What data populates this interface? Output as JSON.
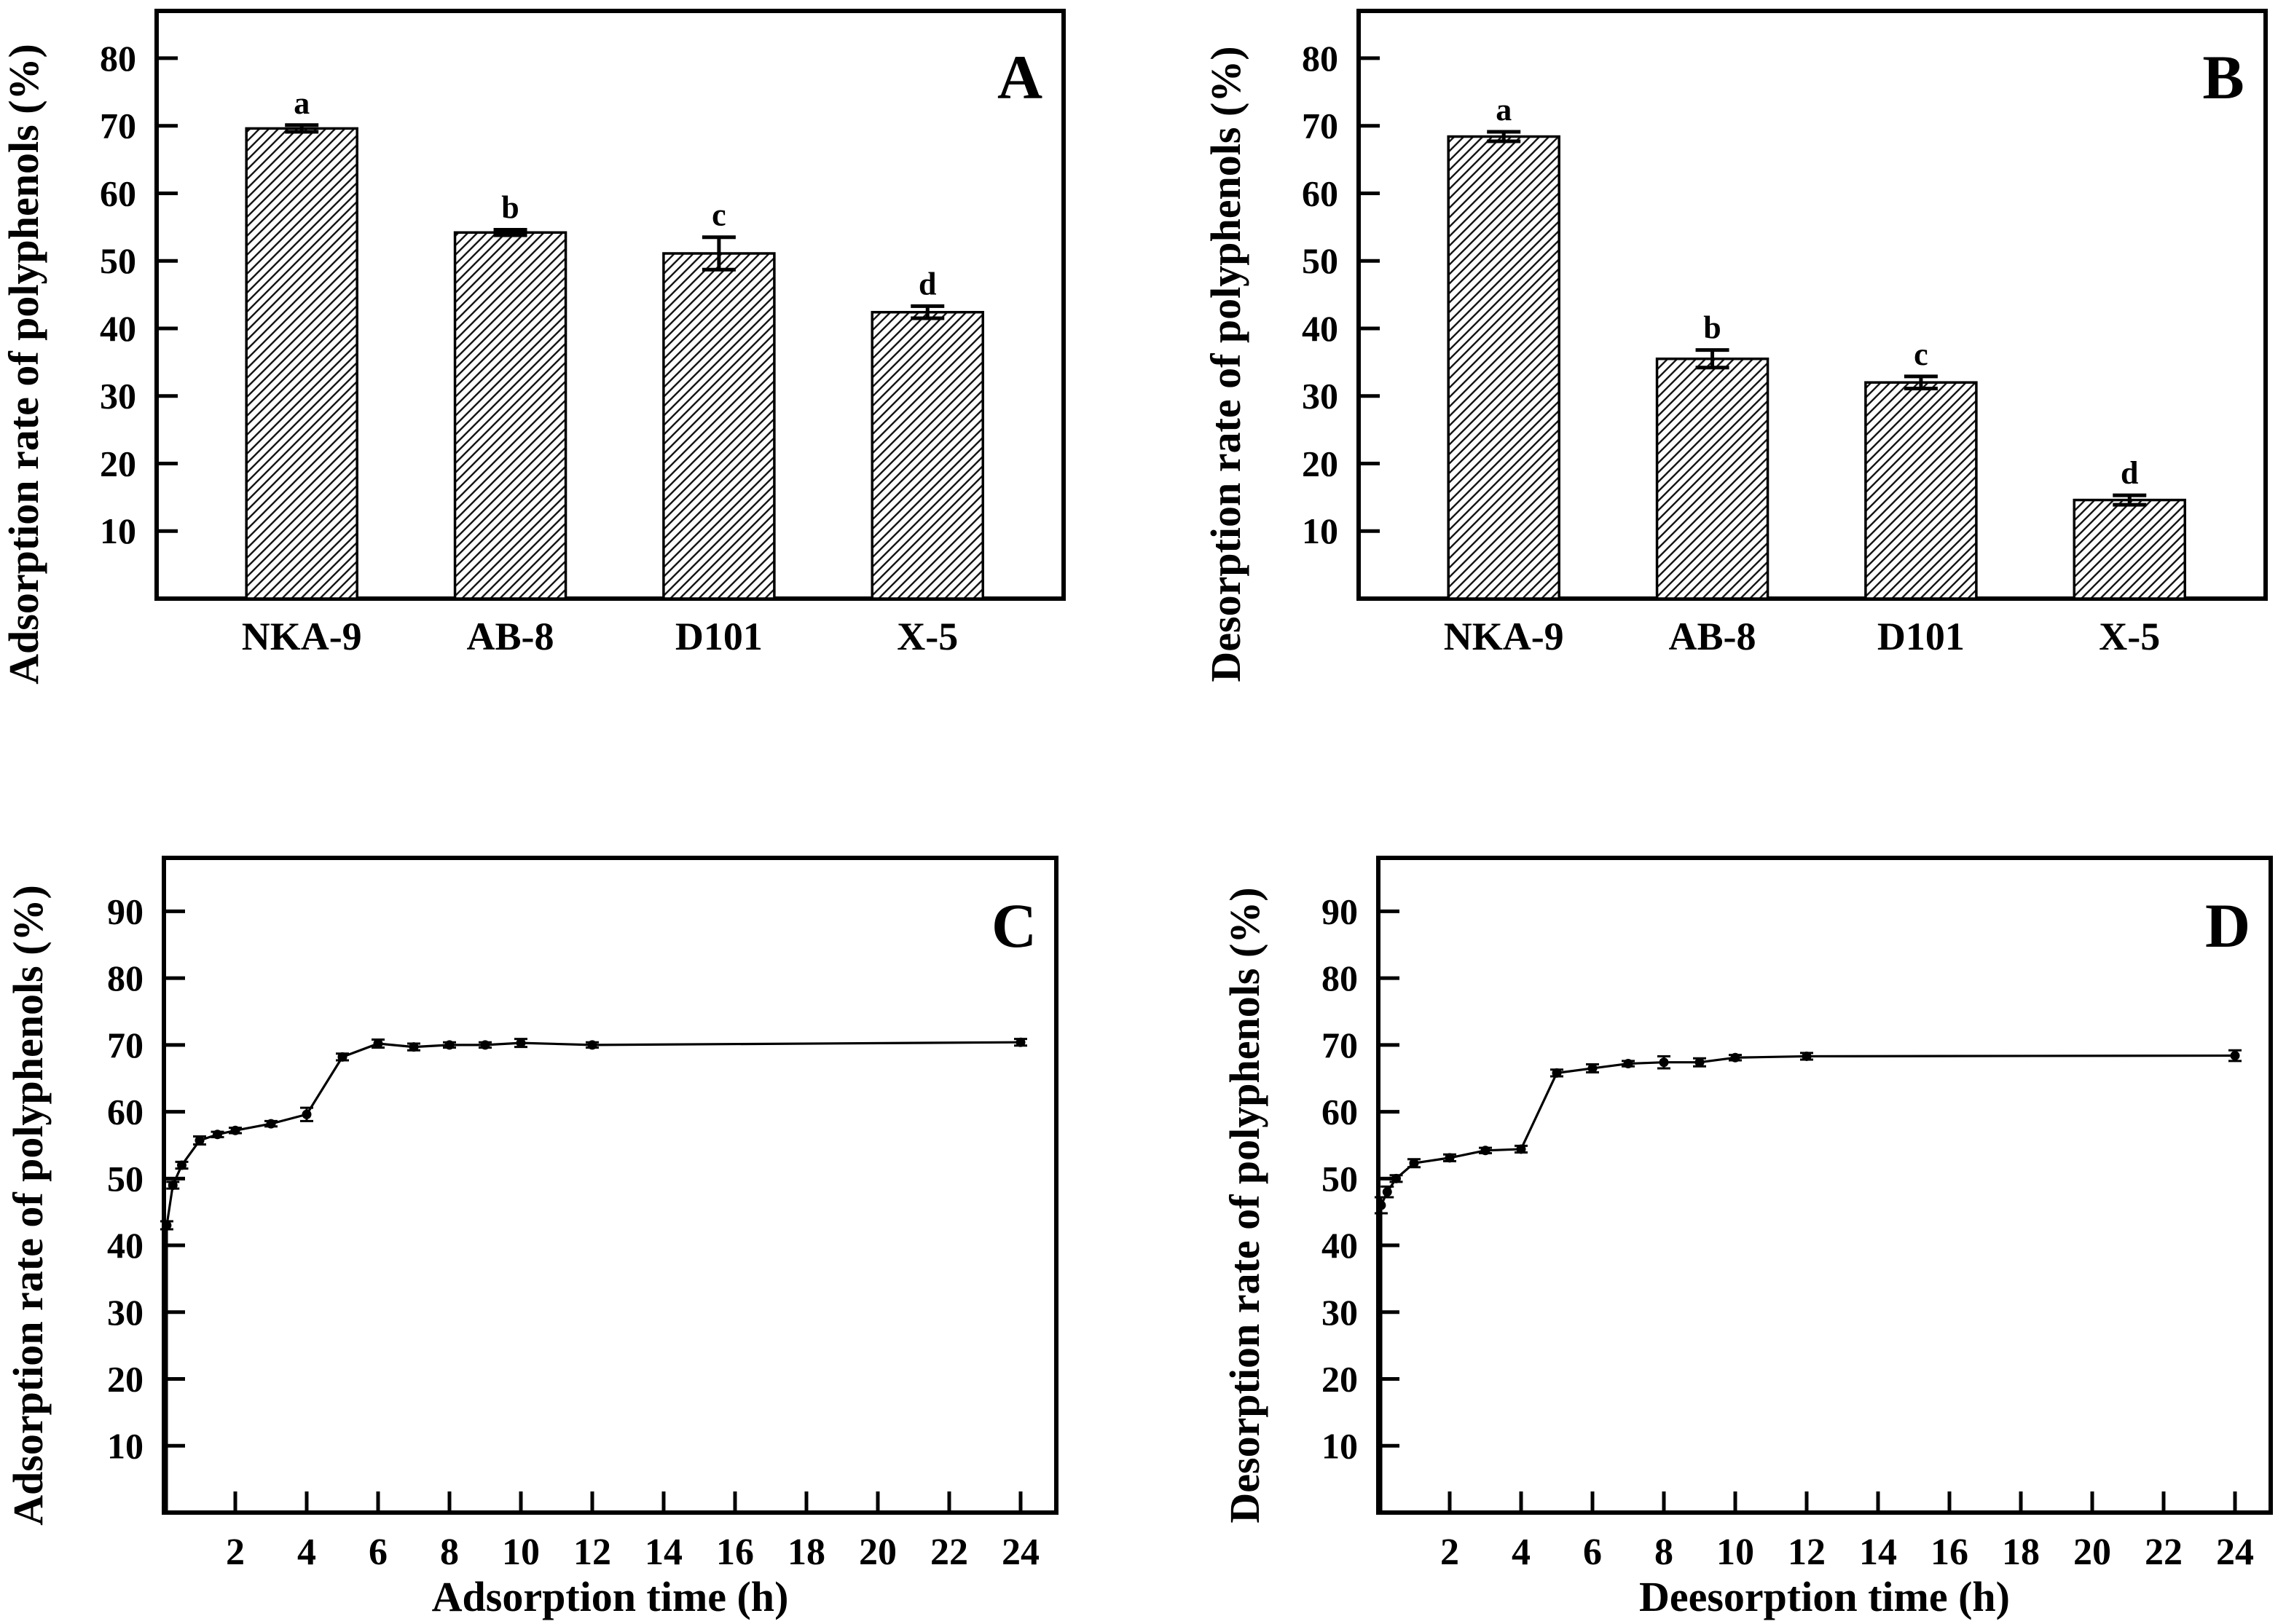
{
  "figure": {
    "background": "#ffffff",
    "ink_color": "#000000",
    "panels": [
      "A",
      "B",
      "C",
      "D"
    ]
  },
  "chart_data": [
    {
      "id": "A",
      "type": "bar",
      "panel_label": "A",
      "ylabel": "Adsorption rate of polyphenols (%)",
      "xlabel": "",
      "categories": [
        "NKA-9",
        "AB-8",
        "D101",
        "X-5"
      ],
      "values": [
        69.6,
        54.2,
        51.1,
        42.4
      ],
      "errors": [
        0.5,
        0.4,
        2.4,
        0.9
      ],
      "sig_letters": [
        "a",
        "b",
        "c",
        "d"
      ],
      "ylim": [
        0,
        87
      ],
      "yticks": [
        10,
        20,
        30,
        40,
        50,
        60,
        70,
        80
      ],
      "grid": false,
      "bar_style": "diagonal-hatch"
    },
    {
      "id": "B",
      "type": "bar",
      "panel_label": "B",
      "ylabel": "Desorption rate of polyphenols (%)",
      "xlabel": "",
      "categories": [
        "NKA-9",
        "AB-8",
        "D101",
        "X-5"
      ],
      "values": [
        68.4,
        35.5,
        32.0,
        14.6
      ],
      "errors": [
        0.7,
        1.3,
        0.9,
        0.7
      ],
      "sig_letters": [
        "a",
        "b",
        "c",
        "d"
      ],
      "ylim": [
        0,
        87
      ],
      "yticks": [
        10,
        20,
        30,
        40,
        50,
        60,
        70,
        80
      ],
      "grid": false,
      "bar_style": "diagonal-hatch"
    },
    {
      "id": "C",
      "type": "line",
      "panel_label": "C",
      "ylabel": "Adsorption rate of polyphenols (%)",
      "xlabel": "Adsorption time (h)",
      "x": [
        0.08,
        0.25,
        0.5,
        1,
        1.5,
        2,
        3,
        4,
        5,
        6,
        7,
        8,
        9,
        10,
        12,
        24
      ],
      "y": [
        43,
        49,
        52,
        55.7,
        56.6,
        57.2,
        58.2,
        59.6,
        68.2,
        70.2,
        69.7,
        70,
        70,
        70.3,
        70,
        70.4
      ],
      "errors": [
        0.6,
        0.5,
        0.5,
        0.6,
        0.4,
        0.4,
        0.4,
        1.0,
        0.5,
        0.6,
        0.5,
        0.4,
        0.4,
        0.6,
        0.4,
        0.5
      ],
      "line_starts_at_origin": true,
      "ylim": [
        0,
        98
      ],
      "yticks": [
        10,
        20,
        30,
        40,
        50,
        60,
        70,
        80,
        90
      ],
      "xlim": [
        0,
        25
      ],
      "xticks": [
        2,
        4,
        6,
        8,
        10,
        12,
        14,
        16,
        18,
        20,
        22,
        24
      ],
      "grid": false,
      "marker": "filled-circle"
    },
    {
      "id": "D",
      "type": "line",
      "panel_label": "D",
      "ylabel": "Desorption rate of polyphenols (%)",
      "xlabel": "Deesorption time (h)",
      "x": [
        0.08,
        0.25,
        0.5,
        1,
        2,
        3,
        4,
        5,
        6,
        7,
        8,
        9,
        10,
        12,
        24
      ],
      "y": [
        46,
        48,
        50,
        52.3,
        53.1,
        54.2,
        54.4,
        65.8,
        66.5,
        67.2,
        67.4,
        67.4,
        68.1,
        68.3,
        68.4
      ],
      "errors": [
        1.2,
        0.8,
        0.5,
        0.6,
        0.5,
        0.4,
        0.5,
        0.5,
        0.6,
        0.4,
        0.9,
        0.6,
        0.4,
        0.5,
        0.8
      ],
      "line_starts_at_origin": true,
      "ylim": [
        0,
        98
      ],
      "yticks": [
        10,
        20,
        30,
        40,
        50,
        60,
        70,
        80,
        90
      ],
      "xlim": [
        0,
        25
      ],
      "xticks": [
        2,
        4,
        6,
        8,
        10,
        12,
        14,
        16,
        18,
        20,
        22,
        24
      ],
      "grid": false,
      "marker": "filled-circle"
    }
  ]
}
